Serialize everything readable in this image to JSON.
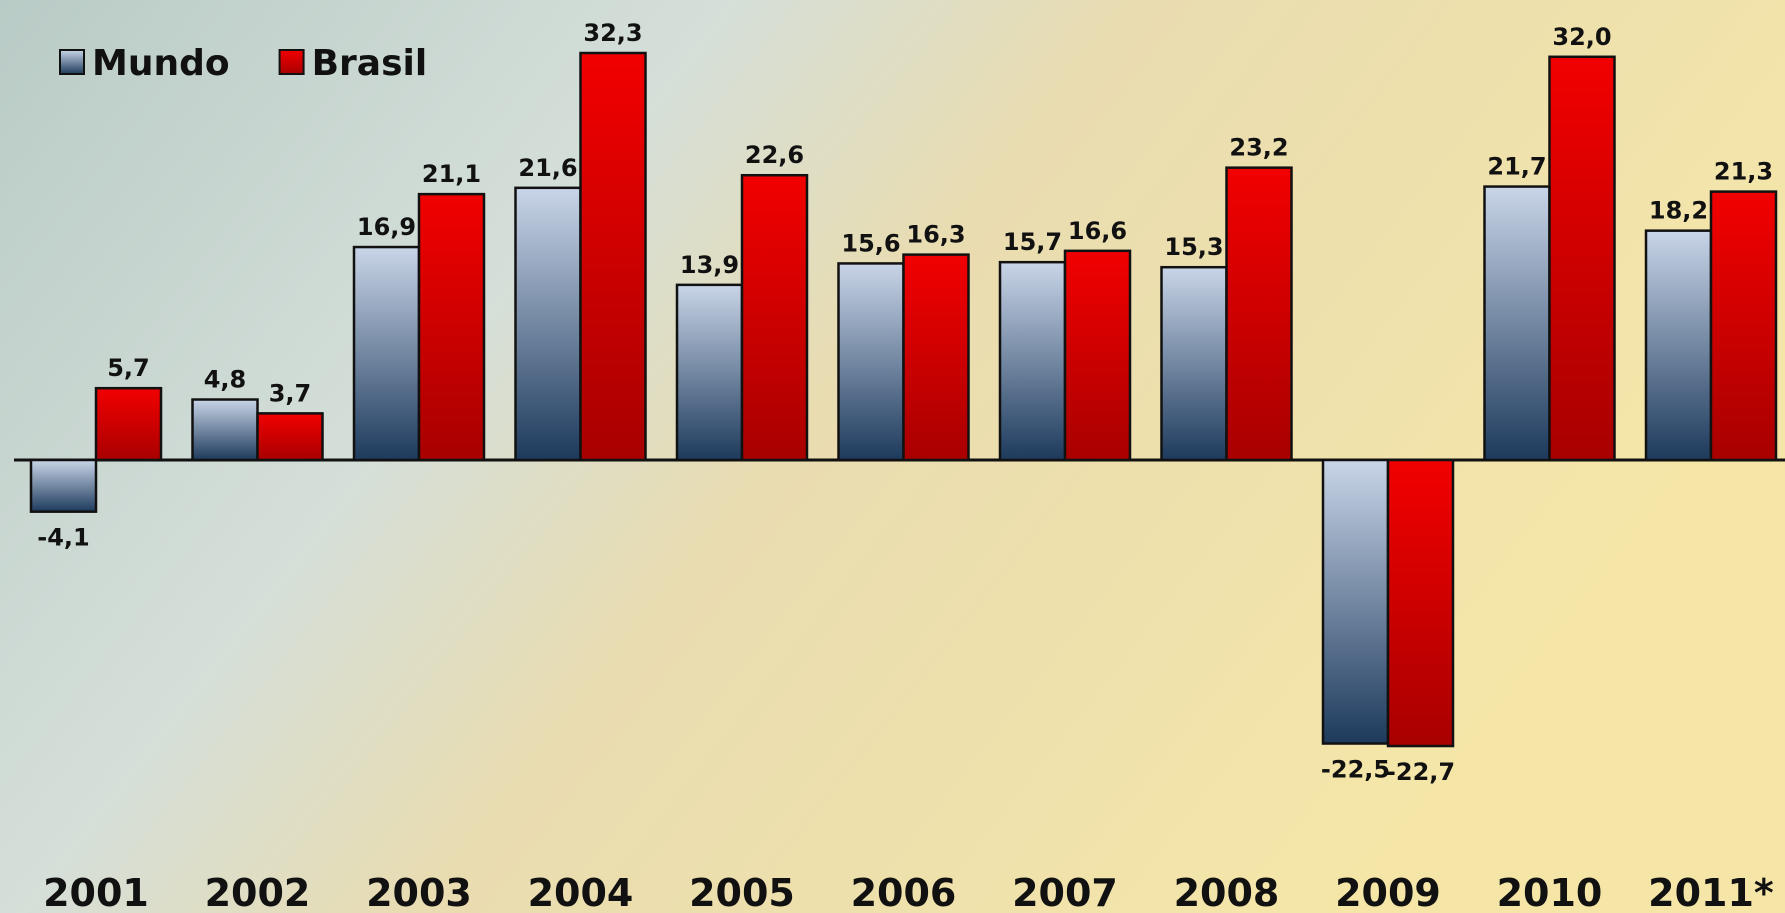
{
  "chart_data": {
    "type": "bar",
    "categories": [
      "2001",
      "2002",
      "2003",
      "2004",
      "2005",
      "2006",
      "2007",
      "2008",
      "2009",
      "2010",
      "2011*"
    ],
    "series": [
      {
        "name": "Mundo",
        "color": "#c9d5e8",
        "values": [
          -4.1,
          4.8,
          16.9,
          21.6,
          13.9,
          15.6,
          15.7,
          15.3,
          -22.5,
          21.7,
          18.2
        ],
        "value_labels": [
          "-4,1",
          "4,8",
          "16,9",
          "21,6",
          "13,9",
          "15,6",
          "15,7",
          "15,3",
          "-22,5",
          "21,7",
          "18,2"
        ]
      },
      {
        "name": "Brasil",
        "color": "#f20000",
        "values": [
          5.7,
          3.7,
          21.1,
          32.3,
          22.6,
          16.3,
          16.6,
          23.2,
          -22.7,
          32.0,
          21.3
        ],
        "value_labels": [
          "5,7",
          "3,7",
          "21,1",
          "32,3",
          "22,6",
          "16,3",
          "16,6",
          "23,2",
          "-22,7",
          "32,0",
          "21,3"
        ]
      }
    ],
    "legend": "top-left"
  }
}
